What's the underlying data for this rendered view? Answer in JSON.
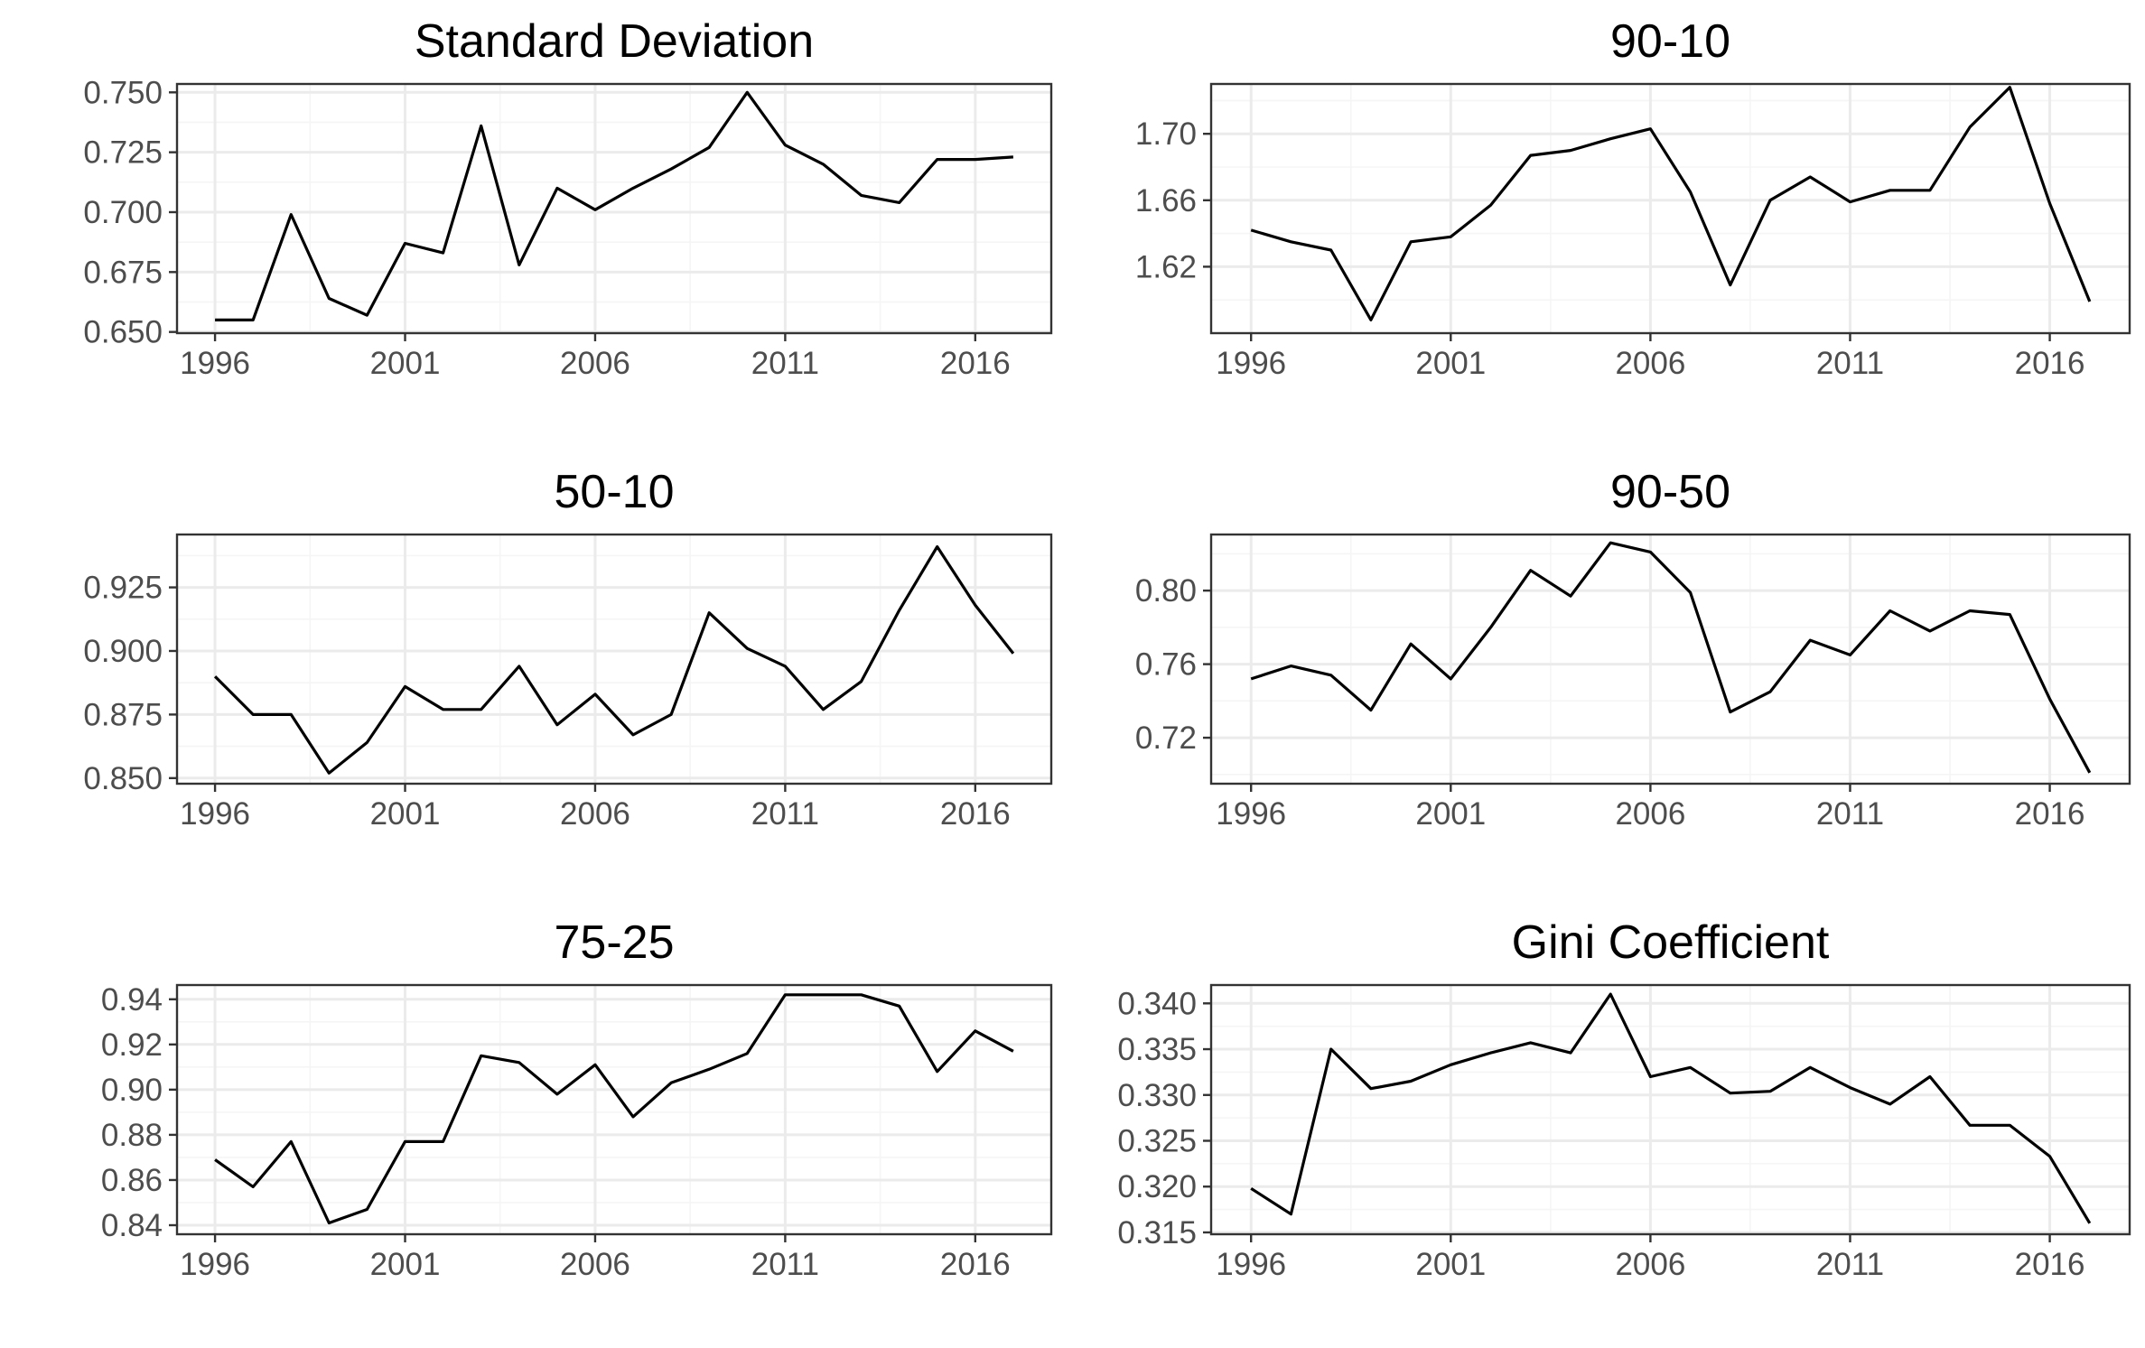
{
  "colors": {
    "line": "#000000",
    "panel_border": "#333333",
    "grid_major": "#ebebeb",
    "grid_minor": "#f5f5f5",
    "tick_text": "#4d4d4d",
    "background": "#ffffff"
  },
  "chart_data": [
    {
      "type": "line",
      "title": "Standard Deviation",
      "xlabel": "",
      "ylabel": "",
      "grid": true,
      "xlim": [
        1995.0,
        2018.0
      ],
      "ylim": [
        0.6495,
        0.7535
      ],
      "x_ticks": [
        "1996",
        "2001",
        "2006",
        "2011",
        "2016"
      ],
      "y_ticks": [
        "0.650",
        "0.675",
        "0.700",
        "0.725",
        "0.750"
      ],
      "x": [
        1996,
        1997,
        1998,
        1999,
        2000,
        2001,
        2002,
        2003,
        2004,
        2005,
        2006,
        2007,
        2008,
        2009,
        2010,
        2011,
        2012,
        2013,
        2014,
        2015,
        2016,
        2017
      ],
      "values": [
        0.655,
        0.655,
        0.699,
        0.664,
        0.657,
        0.687,
        0.683,
        0.736,
        0.678,
        0.71,
        0.701,
        0.71,
        0.718,
        0.727,
        0.75,
        0.728,
        0.72,
        0.707,
        0.704,
        0.722,
        0.722,
        0.723
      ]
    },
    {
      "type": "line",
      "title": "90-10",
      "xlabel": "",
      "ylabel": "",
      "grid": true,
      "xlim": [
        1995.0,
        2018.0
      ],
      "ylim": [
        1.58,
        1.73
      ],
      "x_ticks": [
        "1996",
        "2001",
        "2006",
        "2011",
        "2016"
      ],
      "y_ticks": [
        "1.62",
        "1.66",
        "1.70"
      ],
      "x": [
        1996,
        1997,
        1998,
        1999,
        2000,
        2001,
        2002,
        2003,
        2004,
        2005,
        2006,
        2007,
        2008,
        2009,
        2010,
        2011,
        2012,
        2013,
        2014,
        2015,
        2016,
        2017
      ],
      "values": [
        1.642,
        1.635,
        1.63,
        1.588,
        1.635,
        1.638,
        1.657,
        1.687,
        1.69,
        1.697,
        1.703,
        1.665,
        1.609,
        1.66,
        1.674,
        1.659,
        1.666,
        1.666,
        1.704,
        1.728,
        1.658,
        1.599
      ]
    },
    {
      "type": "line",
      "title": "50-10",
      "xlabel": "",
      "ylabel": "",
      "grid": true,
      "xlim": [
        1995.0,
        2018.0
      ],
      "ylim": [
        0.8478,
        0.9458
      ],
      "x_ticks": [
        "1996",
        "2001",
        "2006",
        "2011",
        "2016"
      ],
      "y_ticks": [
        "0.850",
        "0.875",
        "0.900",
        "0.925"
      ],
      "x": [
        1996,
        1997,
        1998,
        1999,
        2000,
        2001,
        2002,
        2003,
        2004,
        2005,
        2006,
        2007,
        2008,
        2009,
        2010,
        2011,
        2012,
        2013,
        2014,
        2015,
        2016,
        2017
      ],
      "values": [
        0.89,
        0.875,
        0.875,
        0.852,
        0.864,
        0.886,
        0.877,
        0.877,
        0.894,
        0.871,
        0.883,
        0.867,
        0.875,
        0.915,
        0.901,
        0.894,
        0.877,
        0.888,
        0.916,
        0.941,
        0.918,
        0.899
      ]
    },
    {
      "type": "line",
      "title": "90-50",
      "xlabel": "",
      "ylabel": "",
      "grid": true,
      "xlim": [
        1995.0,
        2018.0
      ],
      "ylim": [
        0.695,
        0.8305
      ],
      "x_ticks": [
        "1996",
        "2001",
        "2006",
        "2011",
        "2016"
      ],
      "y_ticks": [
        "0.72",
        "0.76",
        "0.80"
      ],
      "x": [
        1996,
        1997,
        1998,
        1999,
        2000,
        2001,
        2002,
        2003,
        2004,
        2005,
        2006,
        2007,
        2008,
        2009,
        2010,
        2011,
        2012,
        2013,
        2014,
        2015,
        2016,
        2017
      ],
      "values": [
        0.752,
        0.759,
        0.754,
        0.735,
        0.771,
        0.752,
        0.78,
        0.811,
        0.797,
        0.826,
        0.821,
        0.799,
        0.734,
        0.745,
        0.773,
        0.765,
        0.789,
        0.778,
        0.789,
        0.787,
        0.741,
        0.701
      ]
    },
    {
      "type": "line",
      "title": "75-25",
      "xlabel": "",
      "ylabel": "",
      "grid": true,
      "xlim": [
        1995.0,
        2018.0
      ],
      "ylim": [
        0.836,
        0.9463
      ],
      "x_ticks": [
        "1996",
        "2001",
        "2006",
        "2011",
        "2016"
      ],
      "y_ticks": [
        "0.84",
        "0.86",
        "0.88",
        "0.90",
        "0.92",
        "0.94"
      ],
      "x": [
        1996,
        1997,
        1998,
        1999,
        2000,
        2001,
        2002,
        2003,
        2004,
        2005,
        2006,
        2007,
        2008,
        2009,
        2010,
        2011,
        2012,
        2013,
        2014,
        2015,
        2016,
        2017
      ],
      "values": [
        0.869,
        0.857,
        0.877,
        0.841,
        0.847,
        0.877,
        0.877,
        0.915,
        0.912,
        0.898,
        0.911,
        0.888,
        0.903,
        0.909,
        0.916,
        0.942,
        0.942,
        0.942,
        0.937,
        0.908,
        0.926,
        0.917
      ]
    },
    {
      "type": "line",
      "title": "Gini Coefficient",
      "xlabel": "",
      "ylabel": "",
      "grid": true,
      "xlim": [
        1995.0,
        2018.0
      ],
      "ylim": [
        0.3148,
        0.342
      ],
      "x_ticks": [
        "1996",
        "2001",
        "2006",
        "2011",
        "2016"
      ],
      "y_ticks": [
        "0.315",
        "0.320",
        "0.325",
        "0.330",
        "0.335",
        "0.340"
      ],
      "x": [
        1996,
        1997,
        1998,
        1999,
        2000,
        2001,
        2002,
        2003,
        2004,
        2005,
        2006,
        2007,
        2008,
        2009,
        2010,
        2011,
        2012,
        2013,
        2014,
        2015,
        2016,
        2017
      ],
      "values": [
        0.3198,
        0.317,
        0.335,
        0.3307,
        0.3315,
        0.3333,
        0.3346,
        0.3357,
        0.3346,
        0.341,
        0.332,
        0.333,
        0.3302,
        0.3304,
        0.333,
        0.3308,
        0.329,
        0.332,
        0.3267,
        0.3267,
        0.3233,
        0.316
      ]
    }
  ]
}
